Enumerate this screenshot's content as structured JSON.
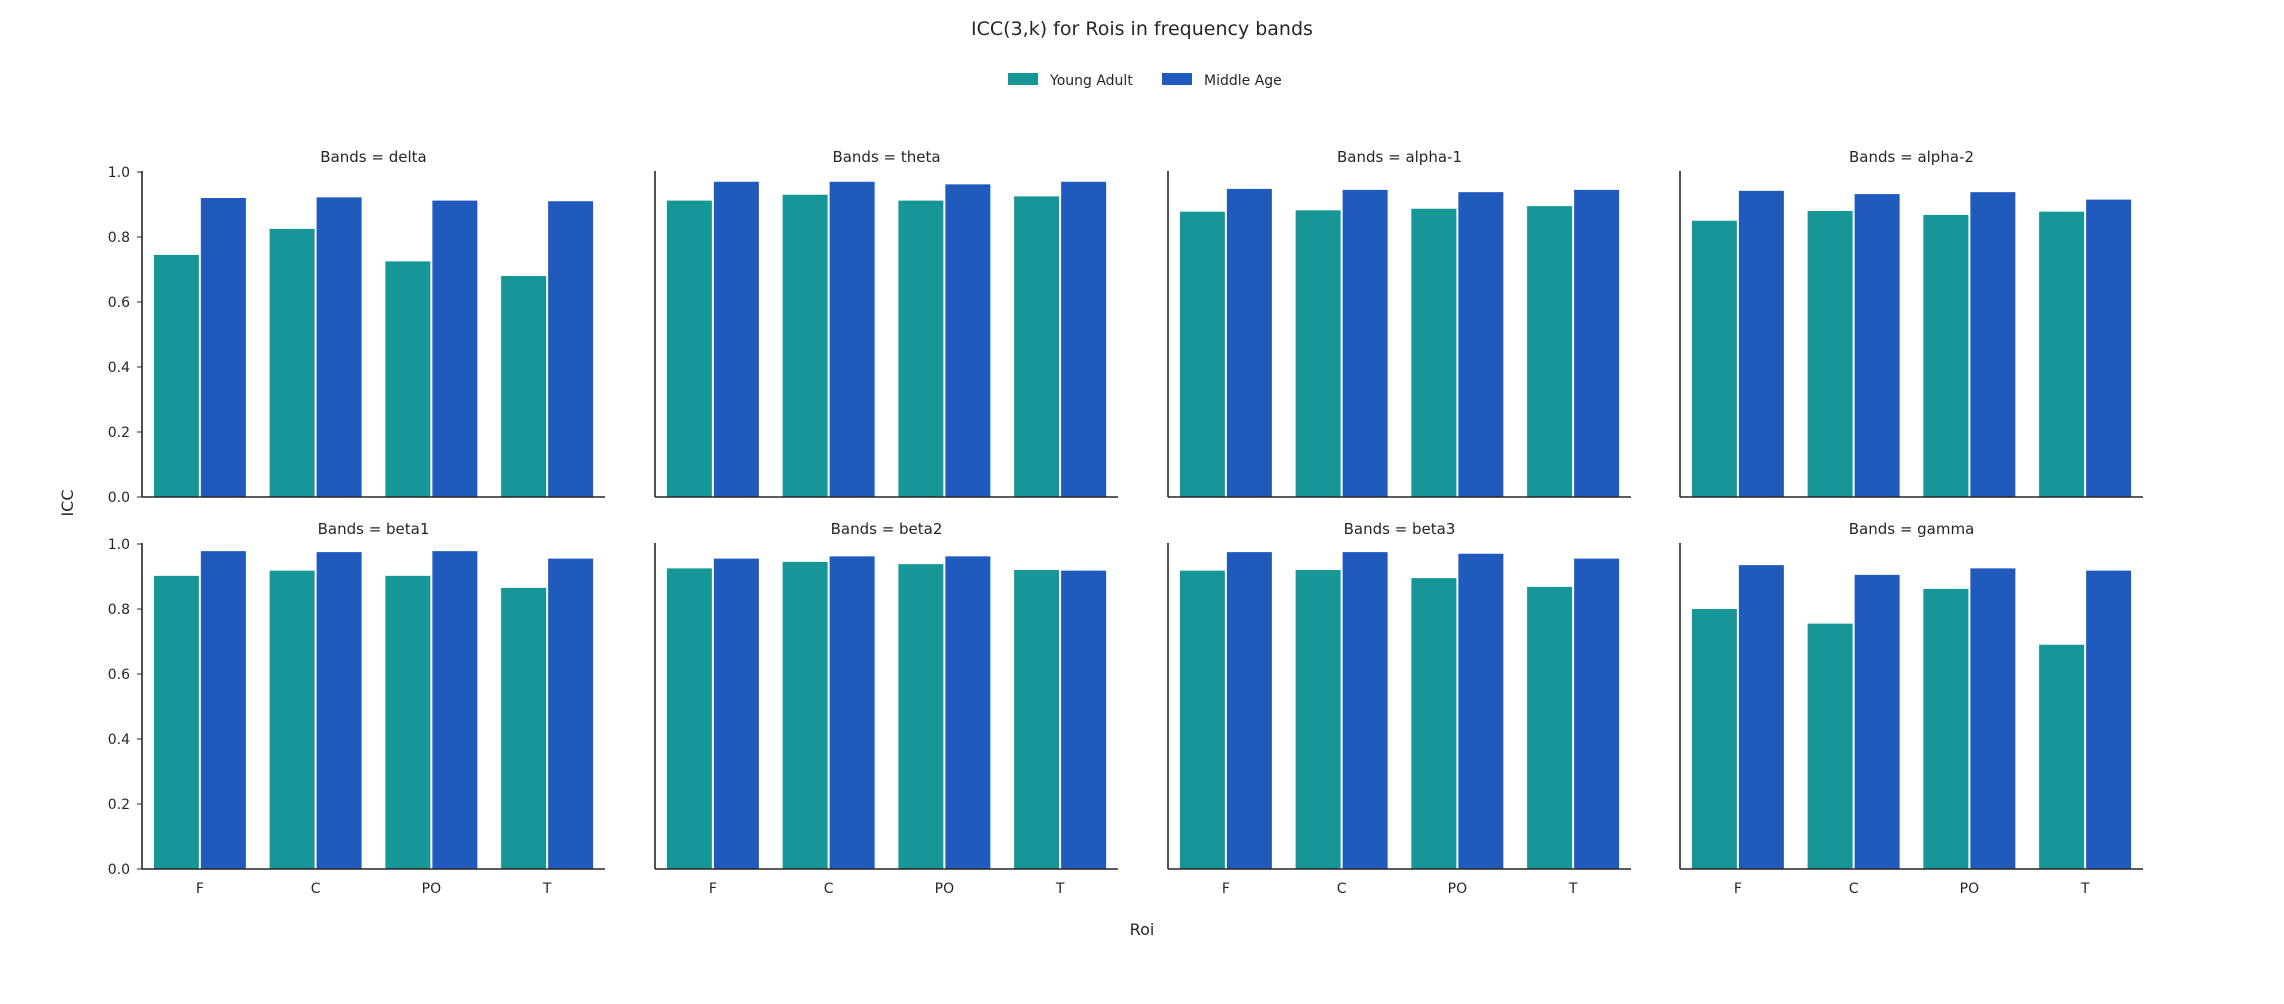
{
  "chart_data": {
    "type": "bar",
    "title": "ICC(3,k) for Rois in frequency bands",
    "xlabel": "Roi",
    "ylabel": "ICC",
    "ylim": [
      0,
      1.0
    ],
    "yticks": [
      "0.0",
      "0.2",
      "0.4",
      "0.6",
      "0.8",
      "1.0"
    ],
    "grid": false,
    "legend_position": "top-center",
    "categories": [
      "F",
      "C",
      "PO",
      "T"
    ],
    "series_legend": [
      {
        "name": "Young Adult",
        "color": "#169696"
      },
      {
        "name": "Middle Age",
        "color": "#1f5abc"
      }
    ],
    "panels": [
      {
        "title": "Bands = delta",
        "values": [
          [
            0.745,
            0.825,
            0.725,
            0.68
          ],
          [
            0.92,
            0.922,
            0.912,
            0.91
          ]
        ]
      },
      {
        "title": "Bands = theta",
        "values": [
          [
            0.912,
            0.93,
            0.912,
            0.925
          ],
          [
            0.97,
            0.97,
            0.962,
            0.97
          ]
        ]
      },
      {
        "title": "Bands = alpha-1",
        "values": [
          [
            0.878,
            0.882,
            0.887,
            0.895
          ],
          [
            0.948,
            0.945,
            0.938,
            0.945
          ]
        ]
      },
      {
        "title": "Bands = alpha-2",
        "values": [
          [
            0.85,
            0.88,
            0.868,
            0.878
          ],
          [
            0.942,
            0.932,
            0.938,
            0.915
          ]
        ]
      },
      {
        "title": "Bands = beta1",
        "values": [
          [
            0.902,
            0.918,
            0.902,
            0.865
          ],
          [
            0.978,
            0.975,
            0.978,
            0.955
          ]
        ]
      },
      {
        "title": "Bands = beta2",
        "values": [
          [
            0.925,
            0.945,
            0.938,
            0.92
          ],
          [
            0.955,
            0.962,
            0.962,
            0.918
          ]
        ]
      },
      {
        "title": "Bands = beta3",
        "values": [
          [
            0.918,
            0.92,
            0.895,
            0.868
          ],
          [
            0.975,
            0.975,
            0.97,
            0.955
          ]
        ]
      },
      {
        "title": "Bands = gamma",
        "values": [
          [
            0.8,
            0.755,
            0.862,
            0.69
          ],
          [
            0.935,
            0.905,
            0.925,
            0.918
          ]
        ]
      }
    ]
  }
}
